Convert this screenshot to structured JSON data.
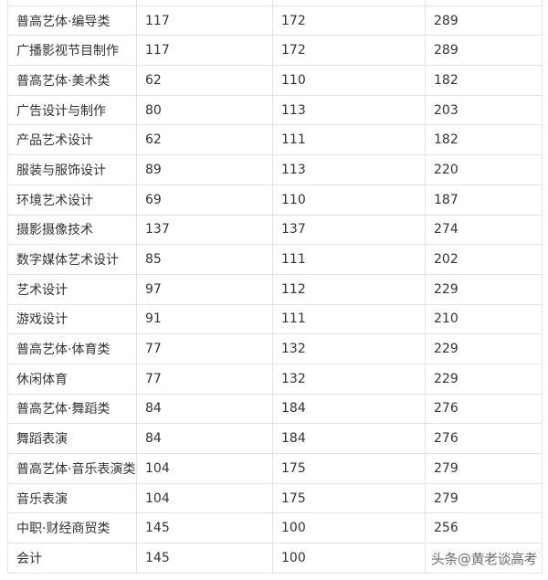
{
  "rows": [
    [
      "",
      "",
      "",
      ""
    ],
    [
      "普高艺体·编导类",
      "117",
      "172",
      "289"
    ],
    [
      "广播影视节目制作",
      "117",
      "172",
      "289"
    ],
    [
      "普高艺体·美术类",
      "62",
      "110",
      "182"
    ],
    [
      "广告设计与制作",
      "80",
      "113",
      "203"
    ],
    [
      "产品艺术设计",
      "62",
      "111",
      "182"
    ],
    [
      "服装与服饰设计",
      "89",
      "113",
      "220"
    ],
    [
      "环境艺术设计",
      "69",
      "110",
      "187"
    ],
    [
      "摄影摄像技术",
      "137",
      "137",
      "274"
    ],
    [
      "数字媒体艺术设计",
      "85",
      "111",
      "202"
    ],
    [
      "艺术设计",
      "97",
      "112",
      "229"
    ],
    [
      "游戏设计",
      "91",
      "111",
      "210"
    ],
    [
      "普高艺体·体育类",
      "77",
      "132",
      "229"
    ],
    [
      "休闲体育",
      "77",
      "132",
      "229"
    ],
    [
      "普高艺体·舞蹈类",
      "84",
      "184",
      "276"
    ],
    [
      "舞蹈表演",
      "84",
      "184",
      "276"
    ],
    [
      "普高艺体·音乐表演类",
      "104",
      "175",
      "279"
    ],
    [
      "音乐表演",
      "104",
      "175",
      "279"
    ],
    [
      "中职·财经商贸类",
      "145",
      "100",
      "256"
    ],
    [
      "会计",
      "145",
      "100",
      ""
    ]
  ],
  "watermark": "头条@黄老谈高考"
}
